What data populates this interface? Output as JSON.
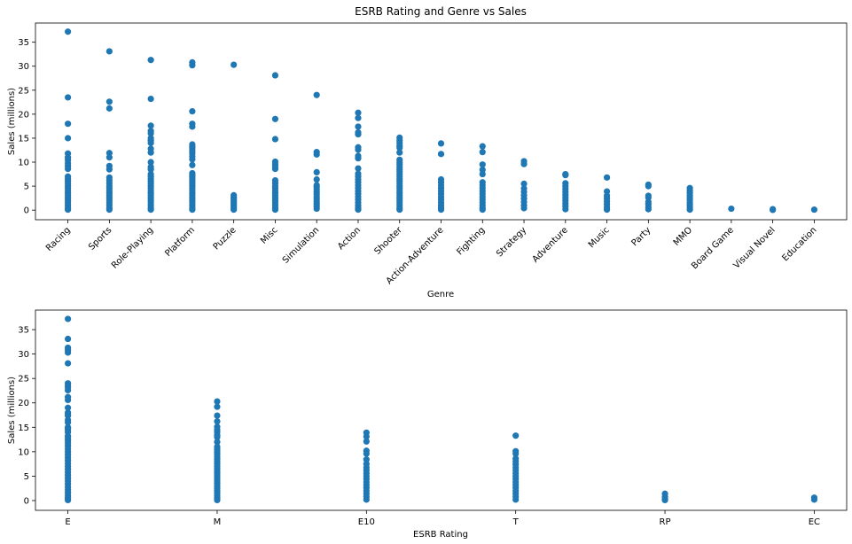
{
  "colors": {
    "marker": "#1f77b4",
    "axis": "#000000",
    "background": "#ffffff"
  },
  "chart_data": [
    {
      "type": "scatter",
      "title": "ESRB Rating and Genre vs Sales",
      "xlabel": "Genre",
      "ylabel": "Sales (millions)",
      "ylim": [
        -2,
        39
      ],
      "yticks": [
        0,
        5,
        10,
        15,
        20,
        25,
        30,
        35
      ],
      "grid": false,
      "categories": [
        "Racing",
        "Sports",
        "Role-Playing",
        "Platform",
        "Puzzle",
        "Misc",
        "Simulation",
        "Action",
        "Shooter",
        "Action-Adventure",
        "Fighting",
        "Strategy",
        "Adventure",
        "Music",
        "Party",
        "MMO",
        "Board Game",
        "Visual Novel",
        "Education"
      ],
      "series": [
        {
          "values": {
            "Racing": [
              37.2,
              23.5,
              18.0,
              15.0,
              11.8,
              11.0,
              10.5,
              9.8,
              9.2,
              8.6,
              7.0,
              6.5,
              6.0,
              5.5,
              5.0,
              4.5,
              4.0,
              3.5,
              3.0,
              2.5,
              2.0,
              1.5,
              1.0,
              0.5,
              0.1
            ],
            "Sports": [
              33.1,
              22.6,
              21.2,
              11.9,
              11.0,
              9.2,
              8.5,
              6.8,
              6.2,
              5.6,
              5.0,
              4.5,
              4.0,
              3.5,
              3.0,
              2.5,
              2.0,
              1.5,
              1.0,
              0.5,
              0.1
            ],
            "Role-Playing": [
              31.3,
              23.2,
              17.6,
              16.5,
              16.0,
              15.0,
              14.5,
              14.0,
              12.8,
              12.0,
              10.0,
              9.0,
              8.5,
              7.5,
              7.0,
              6.5,
              6.0,
              5.5,
              5.0,
              4.5,
              4.0,
              3.5,
              3.0,
              2.5,
              2.0,
              1.5,
              1.0,
              0.5,
              0.1
            ],
            "Platform": [
              30.8,
              30.2,
              20.6,
              18.0,
              17.4,
              13.7,
              13.2,
              12.8,
              12.3,
              11.8,
              11.2,
              10.6,
              9.4,
              7.7,
              7.3,
              7.0,
              6.6,
              6.2,
              5.8,
              5.4,
              5.0,
              4.5,
              4.0,
              3.5,
              3.0,
              2.5,
              2.0,
              1.5,
              1.0,
              0.5,
              0.1
            ],
            "Puzzle": [
              30.3,
              3.1,
              2.8,
              2.5,
              2.2,
              1.9,
              1.6,
              1.3,
              1.0,
              0.7,
              0.4,
              0.1
            ],
            "Misc": [
              28.1,
              19.0,
              14.8,
              10.1,
              9.5,
              9.0,
              8.6,
              6.2,
              5.6,
              5.0,
              4.5,
              4.0,
              3.5,
              3.0,
              2.5,
              2.0,
              1.5,
              1.0,
              0.5,
              0.1
            ],
            "Simulation": [
              24.0,
              12.1,
              11.6,
              7.9,
              6.4,
              5.2,
              4.8,
              4.3,
              3.8,
              3.3,
              2.8,
              2.3,
              1.8,
              1.3,
              0.8,
              0.3
            ],
            "Action": [
              20.3,
              19.2,
              17.4,
              16.2,
              15.8,
              13.1,
              12.6,
              11.3,
              10.8,
              8.7,
              7.6,
              7.0,
              6.4,
              5.8,
              5.2,
              4.6,
              4.0,
              3.4,
              2.8,
              2.2,
              1.6,
              1.0,
              0.5,
              0.1
            ],
            "Shooter": [
              15.1,
              14.5,
              14.0,
              13.4,
              13.0,
              12.0,
              10.5,
              10.0,
              9.5,
              9.0,
              8.5,
              8.0,
              7.5,
              7.0,
              6.5,
              6.0,
              5.5,
              5.0,
              4.5,
              4.0,
              3.5,
              3.0,
              2.5,
              2.0,
              1.5,
              1.0,
              0.5,
              0.1
            ],
            "Action-Adventure": [
              13.9,
              11.7,
              6.4,
              5.8,
              5.2,
              4.6,
              4.0,
              3.4,
              2.8,
              2.2,
              1.6,
              1.0,
              0.5,
              0.1
            ],
            "Fighting": [
              13.3,
              12.1,
              9.5,
              8.4,
              7.5,
              5.8,
              5.2,
              4.6,
              4.0,
              3.4,
              2.8,
              2.2,
              1.6,
              1.0,
              0.5,
              0.1
            ],
            "Strategy": [
              10.2,
              9.6,
              5.5,
              4.5,
              3.8,
              3.1,
              2.4,
              1.7,
              1.0,
              0.4
            ],
            "Adventure": [
              7.5,
              7.3,
              5.6,
              5.0,
              4.4,
              3.8,
              3.2,
              2.6,
              2.0,
              1.4,
              0.8,
              0.2
            ],
            "Music": [
              6.8,
              3.9,
              3.0,
              2.4,
              1.8,
              1.2,
              0.6,
              0.1
            ],
            "Party": [
              5.3,
              5.0,
              3.0,
              2.6,
              1.7,
              1.2,
              0.6,
              0.2
            ],
            "MMO": [
              4.6,
              4.1,
              3.6,
              3.1,
              2.6,
              2.1,
              1.6,
              1.1,
              0.6,
              0.1
            ],
            "Board Game": [
              0.3
            ],
            "Visual Novel": [
              0.2,
              0.05
            ],
            "Education": [
              0.1
            ]
          }
        }
      ]
    },
    {
      "type": "scatter",
      "title": "",
      "xlabel": "ESRB Rating",
      "ylabel": "Sales (millions)",
      "ylim": [
        -2,
        39
      ],
      "yticks": [
        0,
        5,
        10,
        15,
        20,
        25,
        30,
        35
      ],
      "grid": false,
      "categories": [
        "E",
        "M",
        "E10",
        "T",
        "RP",
        "EC"
      ],
      "series": [
        {
          "values": {
            "E": [
              37.2,
              33.1,
              31.3,
              30.8,
              30.3,
              28.1,
              24.0,
              23.5,
              23.2,
              22.6,
              21.2,
              20.6,
              19.0,
              18.0,
              17.6,
              17.4,
              16.5,
              16.0,
              15.0,
              14.8,
              14.5,
              14.0,
              13.2,
              12.8,
              12.3,
              11.8,
              11.2,
              10.6,
              10.0,
              9.4,
              8.8,
              8.2,
              7.6,
              7.0,
              6.4,
              5.8,
              5.2,
              4.6,
              4.0,
              3.4,
              2.8,
              2.2,
              1.6,
              1.0,
              0.5,
              0.1
            ],
            "M": [
              20.3,
              19.2,
              17.4,
              16.2,
              15.1,
              14.5,
              14.0,
              13.4,
              13.0,
              12.0,
              11.0,
              10.5,
              10.0,
              9.5,
              9.0,
              8.5,
              8.0,
              7.5,
              7.0,
              6.5,
              6.0,
              5.5,
              5.0,
              4.5,
              4.0,
              3.5,
              3.0,
              2.5,
              2.0,
              1.5,
              1.0,
              0.5,
              0.1
            ],
            "E10": [
              13.9,
              13.1,
              12.1,
              10.2,
              9.6,
              8.4,
              7.5,
              6.8,
              6.2,
              5.6,
              5.0,
              4.4,
              3.8,
              3.2,
              2.6,
              2.0,
              1.4,
              0.8,
              0.2
            ],
            "T": [
              13.3,
              10.1,
              9.6,
              8.6,
              8.0,
              7.4,
              6.8,
              6.2,
              5.6,
              5.0,
              4.4,
              3.8,
              3.2,
              2.6,
              2.0,
              1.4,
              0.8,
              0.2
            ],
            "RP": [
              1.4,
              0.8,
              0.3,
              0.1
            ],
            "EC": [
              0.6,
              0.2
            ]
          }
        }
      ]
    }
  ]
}
